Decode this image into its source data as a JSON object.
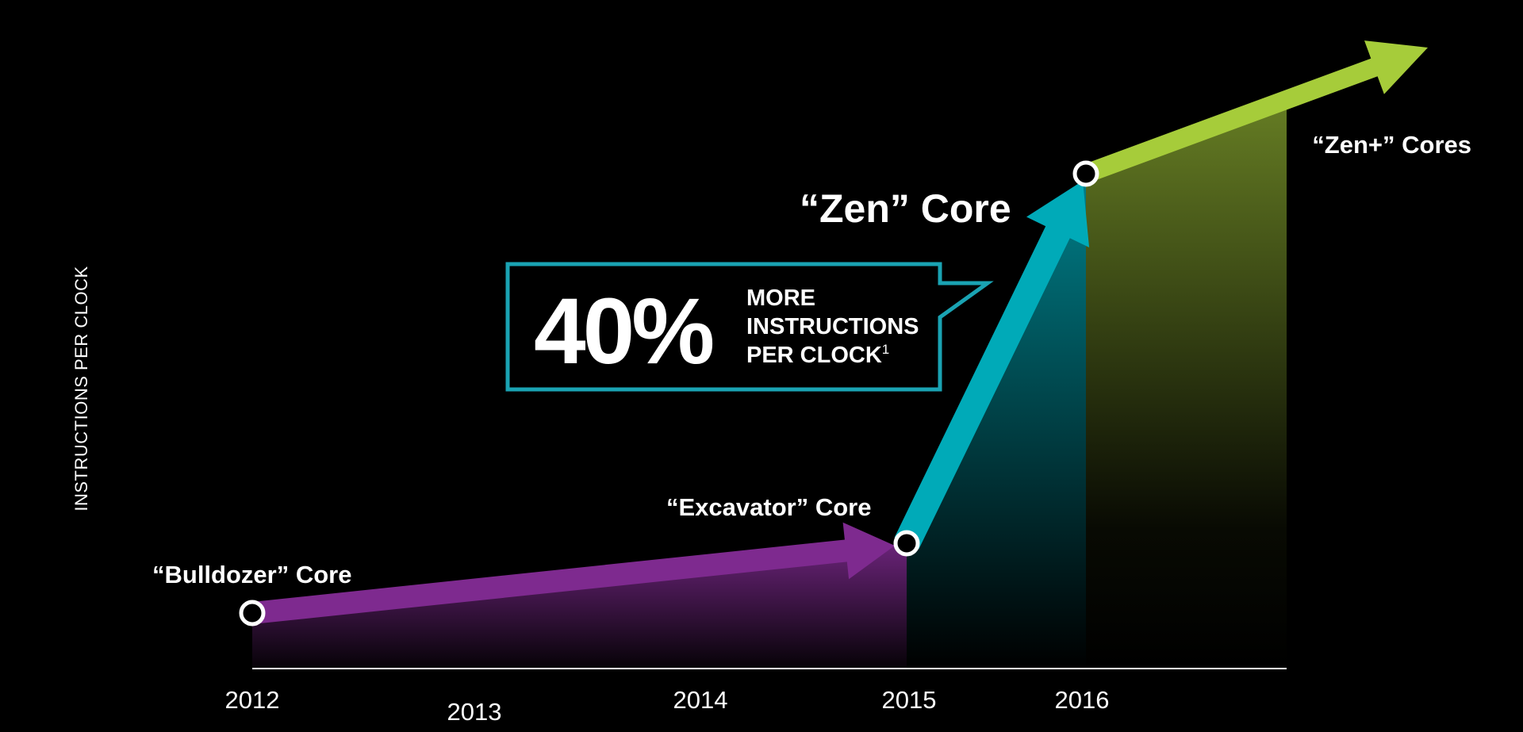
{
  "chart_data": {
    "type": "line",
    "title": "",
    "ylabel": "INSTRUCTIONS PER CLOCK",
    "xlabel": "",
    "x_ticks": [
      "2012",
      "2013",
      "2014",
      "2015",
      "2016"
    ],
    "points": [
      {
        "x": 2012,
        "label": "“Bulldozer” Core",
        "color": "#7e2a8f"
      },
      {
        "x": 2015,
        "label": "“Excavator” Core",
        "color": "#00aab8"
      },
      {
        "x": 2016,
        "label": "“Zen” Core",
        "color": "#a6cc3a"
      },
      {
        "x": "future",
        "label": "“Zen+” Cores",
        "color": "#a6cc3a"
      }
    ],
    "segments": [
      {
        "from": "“Bulldozer” Core",
        "to": "“Excavator” Core",
        "color": "#7e2a8f"
      },
      {
        "from": "“Excavator” Core",
        "to": "“Zen” Core",
        "color": "#00aab8"
      },
      {
        "from": "“Zen” Core",
        "to": "“Zen+” Cores",
        "color": "#a6cc3a"
      }
    ],
    "callout": {
      "value": "40%",
      "line1": "MORE",
      "line2": "INSTRUCTIONS",
      "line3": "PER CLOCK",
      "footnote": "1",
      "border_color": "#1aa3b3"
    },
    "grid": false,
    "legend": "none"
  }
}
